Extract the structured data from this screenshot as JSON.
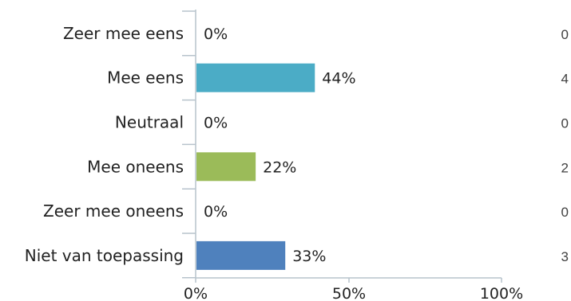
{
  "chart_data": {
    "type": "bar",
    "orientation": "horizontal",
    "categories": [
      "Zeer mee eens",
      "Mee eens",
      "Neutraal",
      "Mee oneens",
      "Zeer mee oneens",
      "Niet van toepassing"
    ],
    "values": [
      0,
      44,
      0,
      22,
      0,
      33
    ],
    "value_labels": [
      "0%",
      "44%",
      "0%",
      "22%",
      "0%",
      "33%"
    ],
    "counts": [
      "0",
      "4",
      "0",
      "2",
      "0",
      "3"
    ],
    "bar_colors": [
      "#4bacc6",
      "#4bacc6",
      "#4bacc6",
      "#9bbb59",
      "#9bbb59",
      "#4f81bd"
    ],
    "xlim": [
      0,
      100
    ],
    "x_ticks": [
      "0%",
      "50%",
      "100%"
    ],
    "grid": false,
    "legend": "none",
    "title": "",
    "xlabel": "",
    "ylabel": ""
  },
  "colors": {
    "axis": "#b7c3cc",
    "text": "#222222",
    "count_text": "#404040"
  }
}
